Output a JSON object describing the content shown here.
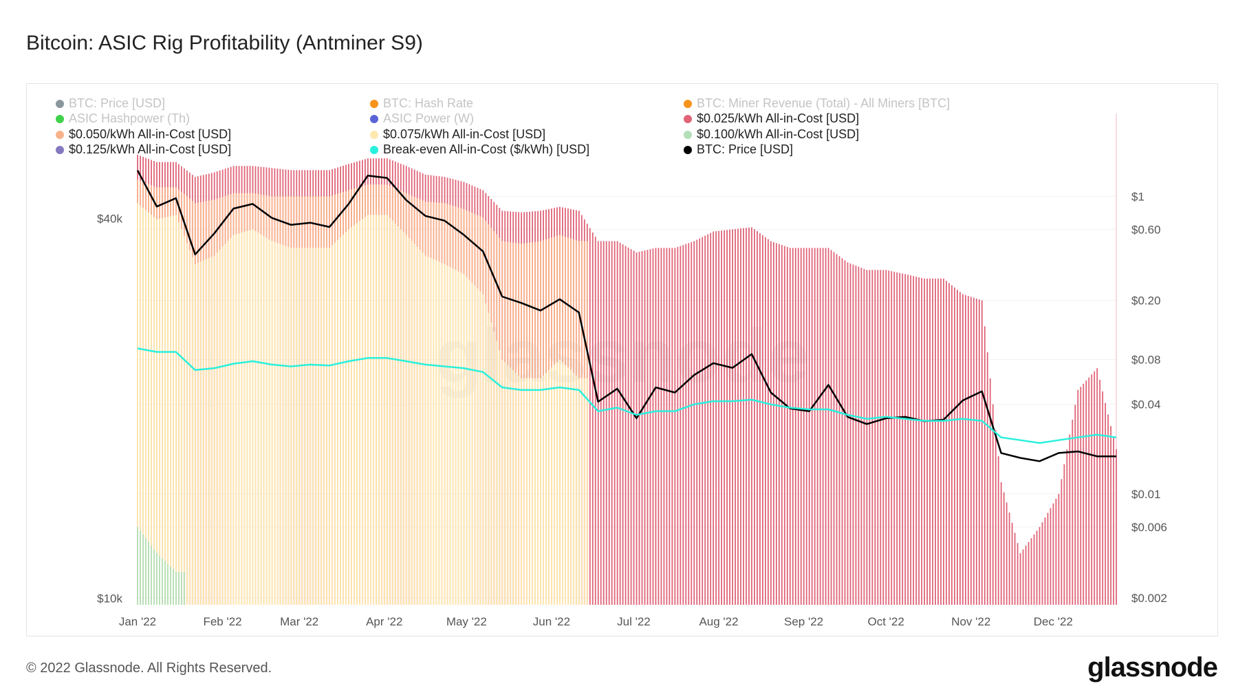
{
  "title": "Bitcoin: ASIC Rig Profitability (Antminer S9)",
  "footer": "© 2022 Glassnode. All Rights Reserved.",
  "logo": "glassnode",
  "watermark": "glassnode",
  "legend": [
    {
      "label": "BTC: Price [USD]",
      "color": "#8a979e",
      "active": false
    },
    {
      "label": "BTC: Hash Rate",
      "color": "#f7931a",
      "active": false
    },
    {
      "label": "BTC: Miner Revenue (Total) - All Miners [BTC]",
      "color": "#f7931a",
      "active": false
    },
    {
      "label": "ASIC Hashpower (Th)",
      "color": "#3fd24a",
      "active": false
    },
    {
      "label": "ASIC Power (W)",
      "color": "#5a64d6",
      "active": false
    },
    {
      "label": "$0.025/kWh All-in-Cost [USD]",
      "color": "#e06377",
      "active": true
    },
    {
      "label": "$0.050/kWh All-in-Cost [USD]",
      "color": "#f9b38a",
      "active": true
    },
    {
      "label": "$0.075/kWh All-in-Cost [USD]",
      "color": "#fde9b0",
      "active": true
    },
    {
      "label": "$0.100/kWh All-in-Cost [USD]",
      "color": "#b2e0b8",
      "active": true
    },
    {
      "label": "$0.125/kWh All-in-Cost [USD]",
      "color": "#8479c0",
      "active": true
    },
    {
      "label": "Break-even All-in-Cost ($/kWh) [USD]",
      "color": "#29f0dc",
      "active": true
    },
    {
      "label": "BTC: Price [USD]",
      "color": "#000000",
      "active": true
    }
  ],
  "chart_data": {
    "type": "line+bar",
    "title": "Bitcoin: ASIC Rig Profitability (Antminer S9)",
    "x_axis": {
      "ticks": [
        "Jan '22",
        "Feb '22",
        "Mar '22",
        "Apr '22",
        "May '22",
        "Jun '22",
        "Jul '22",
        "Aug '22",
        "Sep '22",
        "Oct '22",
        "Nov '22",
        "Dec '22"
      ],
      "range": [
        "2022-01-01",
        "2022-12-24"
      ]
    },
    "y_left": {
      "scale": "log",
      "ticks": [
        "$40k",
        "$10k"
      ],
      "tick_values": [
        40000,
        10000
      ],
      "range": [
        9770,
        58700
      ]
    },
    "y_right": {
      "scale": "log",
      "ticks": [
        "$1",
        "$0.60",
        "$0.20",
        "$0.08",
        "$0.04",
        "$0.01",
        "$0.006",
        "$0.002"
      ],
      "tick_values": [
        1,
        0.6,
        0.2,
        0.08,
        0.04,
        0.01,
        0.006,
        0.002
      ],
      "range": [
        0.0018,
        3.6
      ]
    },
    "grid": true,
    "legend_placement": "top",
    "x_dates_weekly_start": "2022-01-01",
    "x_step_days": 7,
    "series": [
      {
        "name": "BTC: Price [USD]",
        "axis": "left",
        "kind": "line",
        "color": "#000000",
        "values": [
          47700,
          41800,
          43100,
          35100,
          37900,
          41500,
          42200,
          40100,
          39100,
          39400,
          38800,
          42200,
          46800,
          46400,
          42800,
          40400,
          39700,
          37700,
          35500,
          30100,
          29400,
          28600,
          29800,
          28400,
          20500,
          21500,
          19300,
          21600,
          21200,
          22600,
          23600,
          23200,
          24400,
          21200,
          20000,
          19800,
          21800,
          19400,
          18900,
          19300,
          19400,
          19100,
          19200,
          20600,
          21300,
          17000,
          16700,
          16500,
          17000,
          17100,
          16800,
          16800
        ]
      },
      {
        "name": "Break-even All-in-Cost ($/kWh) [USD]",
        "axis": "right",
        "kind": "line",
        "color": "#29f0dc",
        "values": [
          0.095,
          0.09,
          0.09,
          0.068,
          0.07,
          0.075,
          0.078,
          0.074,
          0.072,
          0.074,
          0.073,
          0.078,
          0.082,
          0.082,
          0.078,
          0.074,
          0.072,
          0.07,
          0.066,
          0.052,
          0.05,
          0.05,
          0.052,
          0.05,
          0.036,
          0.038,
          0.034,
          0.036,
          0.036,
          0.04,
          0.042,
          0.042,
          0.043,
          0.04,
          0.038,
          0.037,
          0.037,
          0.034,
          0.032,
          0.033,
          0.032,
          0.031,
          0.031,
          0.032,
          0.031,
          0.024,
          0.023,
          0.022,
          0.023,
          0.024,
          0.025,
          0.024
        ]
      },
      {
        "name": "$0.025/kWh All-in-Cost [USD]",
        "axis": "right",
        "kind": "bar",
        "color": "#e06377",
        "values": [
          1.9,
          1.7,
          1.7,
          1.35,
          1.45,
          1.6,
          1.6,
          1.55,
          1.5,
          1.5,
          1.5,
          1.65,
          1.8,
          1.8,
          1.6,
          1.4,
          1.35,
          1.25,
          1.1,
          0.8,
          0.78,
          0.8,
          0.85,
          0.8,
          0.5,
          0.5,
          0.42,
          0.45,
          0.45,
          0.5,
          0.58,
          0.6,
          0.62,
          0.5,
          0.45,
          0.45,
          0.45,
          0.36,
          0.32,
          0.32,
          0.3,
          0.28,
          0.28,
          0.22,
          0.2,
          0.012,
          0.004,
          0.006,
          0.01,
          0.05,
          0.07,
          0.02
        ]
      },
      {
        "name": "$0.050/kWh All-in-Cost [USD]",
        "axis": "right",
        "kind": "bar",
        "color": "#f9b38a",
        "values": [
          1.3,
          1.15,
          1.15,
          0.9,
          0.95,
          1.05,
          1.05,
          1.0,
          1.0,
          1.0,
          1.0,
          1.1,
          1.2,
          1.2,
          1.05,
          0.92,
          0.9,
          0.82,
          0.72,
          0.5,
          0.48,
          0.5,
          0.55,
          0.5
        ]
      },
      {
        "name": "$0.075/kWh All-in-Cost [USD]",
        "axis": "right",
        "kind": "bar",
        "color": "#fde9b0",
        "values": [
          0.9,
          0.7,
          0.75,
          0.35,
          0.4,
          0.55,
          0.6,
          0.5,
          0.45,
          0.45,
          0.45,
          0.6,
          0.75,
          0.75,
          0.55,
          0.4,
          0.35,
          0.3,
          0.22,
          0.08,
          0.06,
          0.06,
          0.08,
          0.06
        ]
      },
      {
        "name": "$0.100/kWh All-in-Cost [USD]",
        "axis": "right",
        "kind": "bar",
        "color": "#b2e0b8",
        "values": [
          0.006,
          0.004,
          0.003
        ]
      }
    ]
  }
}
